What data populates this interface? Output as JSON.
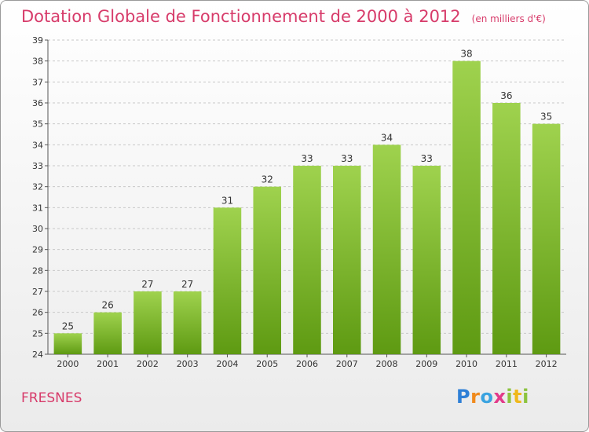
{
  "header": {
    "title": "Dotation Globale de Fonctionnement de 2000 à 2012",
    "subtitle": "(en milliers d'€)"
  },
  "footer": {
    "commune": "FRESNES",
    "logo": "Proxiti"
  },
  "colors": {
    "accent": "#d73b6a",
    "bar_light": "#9fd24e",
    "bar_dark": "#5e9a12",
    "grid": "#c8c8c8"
  },
  "chart_data": {
    "type": "bar",
    "categories": [
      "2000",
      "2001",
      "2002",
      "2003",
      "2004",
      "2005",
      "2006",
      "2007",
      "2008",
      "2009",
      "2010",
      "2011",
      "2012"
    ],
    "values": [
      25,
      26,
      27,
      27,
      31,
      32,
      33,
      33,
      34,
      33,
      38,
      36,
      35
    ],
    "title": "Dotation Globale de Fonctionnement de 2000 à 2012",
    "subtitle": "(en milliers d'€)",
    "xlabel": "",
    "ylabel": "",
    "ylim": [
      24,
      39
    ],
    "yticks": [
      24,
      25,
      26,
      27,
      28,
      29,
      30,
      31,
      32,
      33,
      34,
      35,
      36,
      37,
      38,
      39
    ],
    "grid": true,
    "legend": "none"
  }
}
